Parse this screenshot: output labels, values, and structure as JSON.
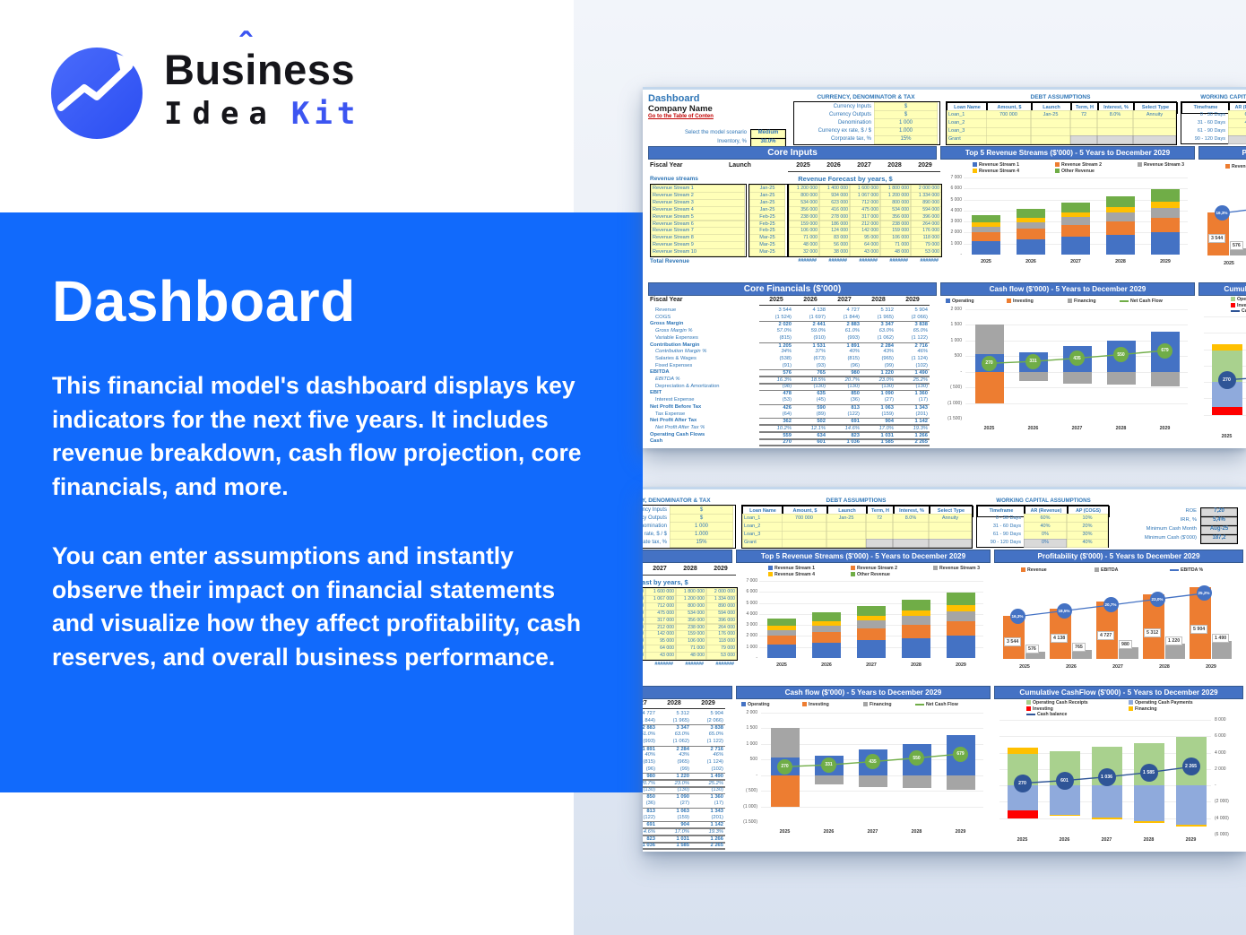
{
  "logo": {
    "word1_a": "Bus",
    "word1_i": "i",
    "word1_hat": "ˆ",
    "word1_b": "ness",
    "word2": "Idea",
    "word3": "Kit"
  },
  "hero": {
    "title": "Dashboard",
    "para1": "This financial model's dashboard displays key indicators for the next five years. It includes revenue breakdown, cash flow projection, core financials, and more.",
    "para2": "You can enter assumptions and instantly observe their impact on financial statements and visualize how they affect profitability, cash reserves, and overall business performance."
  },
  "colors": {
    "brand_blue": "#116afc",
    "excel_banner": "#4472c4",
    "series_blue": "#4472c4",
    "series_orange": "#ed7d31",
    "series_gray": "#a5a5a5",
    "series_yellow": "#ffc000",
    "series_green": "#70ad47",
    "light_green": "#a9d18e",
    "light_blue": "#8faadc",
    "red": "#ff0000",
    "dark_blue": "#2f5597",
    "link_red": "#c00000",
    "cell_yellow": "#ffffb8"
  },
  "sheet": {
    "header": {
      "title": "Dashboard",
      "company": "Company Name",
      "toc": "Go to the Table of Conten"
    },
    "scenario": [
      [
        "Select the model scenario",
        "Medium"
      ],
      [
        "Inventory, %",
        "30.0%"
      ]
    ],
    "currency": {
      "title": "CURRENCY, DENOMINATOR & TAX",
      "rows": [
        [
          "Currency Inputs",
          "$"
        ],
        [
          "Currency Outputs",
          "$"
        ],
        [
          "Denomination",
          "1 000"
        ],
        [
          "Currency ex rate, $ / $",
          "1.000"
        ],
        [
          "Corporate tax, %",
          "15%"
        ]
      ]
    },
    "debt": {
      "title": "DEBT ASSUMPTIONS",
      "headers": [
        "Loan Name",
        "Amount, $",
        "Launch",
        "Term, H",
        "Interest, %",
        "Select Type"
      ],
      "rows": [
        [
          "Loan_1",
          "700 000",
          "Jan-25",
          "72",
          "8.0%",
          "Annuity"
        ],
        [
          "Loan_2",
          "",
          "",
          "",
          "",
          ""
        ],
        [
          "Loan_3",
          "",
          "",
          "",
          "",
          ""
        ],
        [
          "Grant",
          "",
          "",
          "",
          "",
          ""
        ]
      ]
    },
    "working_capital": {
      "title": "WORKING CAPITAL ASSUMPTIONS",
      "headers": [
        "Timeframe",
        "AR (Revenue)",
        "AP (COGS)"
      ],
      "rows": [
        [
          "0 - 30 Days",
          "60%",
          "10%"
        ],
        [
          "31 - 60 Days",
          "40%",
          "20%"
        ],
        [
          "61 - 90 Days",
          "0%",
          "30%"
        ],
        [
          "90 - 120 Days",
          "0%",
          "40%"
        ]
      ]
    },
    "kpis": [
      [
        "ROE",
        "7,20"
      ],
      [
        "IRR, %",
        "5,4%"
      ],
      [
        "Minimum Cash Month",
        "Aug-25"
      ],
      [
        "Minimum Cash ($'000)",
        "187,2"
      ]
    ],
    "banners": {
      "core_inputs": "Core Inputs",
      "core_financials": "Core Financials ($'000)"
    },
    "fiscal": {
      "label": "Fiscal Year",
      "launch": "Launch",
      "years": [
        "2025",
        "2026",
        "2027",
        "2028",
        "2029"
      ]
    },
    "revenue": {
      "label": "Revenue streams",
      "forecast_title": "Revenue Forecast by years, $",
      "names": [
        "Revenue Stream 1",
        "Revenue Stream 2",
        "Revenue Stream 3",
        "Revenue Stream 4",
        "Revenue Stream 5",
        "Revenue Stream 6",
        "Revenue Stream 7",
        "Revenue Stream 8",
        "Revenue Stream 9",
        "Revenue Stream 10"
      ],
      "launch": [
        "Jan-25",
        "Jan-25",
        "Jan-25",
        "Jan-25",
        "Feb-25",
        "Feb-25",
        "Feb-25",
        "Mar-25",
        "Mar-25",
        "Mar-25"
      ],
      "values": [
        [
          "1 200 000",
          "1 400 000",
          "1 600 000",
          "1 800 000",
          "2 000 000"
        ],
        [
          "800 000",
          "934 000",
          "1 067 000",
          "1 200 000",
          "1 334 000"
        ],
        [
          "534 000",
          "623 000",
          "712 000",
          "800 000",
          "890 000"
        ],
        [
          "356 000",
          "416 000",
          "475 000",
          "534 000",
          "594 000"
        ],
        [
          "238 000",
          "278 000",
          "317 000",
          "356 000",
          "396 000"
        ],
        [
          "159 000",
          "186 000",
          "212 000",
          "238 000",
          "264 000"
        ],
        [
          "106 000",
          "124 000",
          "142 000",
          "159 000",
          "176 000"
        ],
        [
          "71 000",
          "83 000",
          "95 000",
          "106 000",
          "118 000"
        ],
        [
          "48 000",
          "56 000",
          "64 000",
          "71 000",
          "79 000"
        ],
        [
          "32 000",
          "38 000",
          "43 000",
          "48 000",
          "53 000"
        ]
      ],
      "total_label": "Total Revenue",
      "total_cells": [
        "#######",
        "#######",
        "#######",
        "#######",
        "#######"
      ]
    },
    "core_financials": {
      "rows": [
        {
          "l": "Revenue",
          "v": [
            "3 544",
            "4 138",
            "4 727",
            "5 312",
            "5 904"
          ],
          "s": "p"
        },
        {
          "l": "COGS",
          "v": [
            "(1 524)",
            "(1 697)",
            "(1 844)",
            "(1 965)",
            "(2 066)"
          ],
          "s": "p"
        },
        {
          "l": "Gross Margin",
          "v": [
            "2 020",
            "2 441",
            "2 883",
            "3 347",
            "3 838"
          ],
          "s": "b",
          "line": "top"
        },
        {
          "l": "Gross Margin %",
          "v": [
            "57.0%",
            "59.0%",
            "61.0%",
            "63.0%",
            "65.0%"
          ],
          "s": "i"
        },
        {
          "l": "Variable Expenses",
          "v": [
            "(815)",
            "(910)",
            "(993)",
            "(1 062)",
            "(1 122)"
          ],
          "s": "p"
        },
        {
          "l": "Contribution Margin",
          "v": [
            "1 205",
            "1 531",
            "1 891",
            "2 284",
            "2 716"
          ],
          "s": "b",
          "line": "top"
        },
        {
          "l": "Contribution Margin %",
          "v": [
            "34%",
            "37%",
            "40%",
            "43%",
            "46%"
          ],
          "s": "i"
        },
        {
          "l": "Salaries & Wages",
          "v": [
            "(538)",
            "(673)",
            "(815)",
            "(965)",
            "(1 124)"
          ],
          "s": "p"
        },
        {
          "l": "Fixed Expenses",
          "v": [
            "(91)",
            "(93)",
            "(96)",
            "(99)",
            "(102)"
          ],
          "s": "p"
        },
        {
          "l": "EBITDA",
          "v": [
            "576",
            "765",
            "980",
            "1 220",
            "1 490"
          ],
          "s": "b",
          "line": "dbl"
        },
        {
          "l": "EBITDA %",
          "v": [
            "16.3%",
            "18.5%",
            "20.7%",
            "23.0%",
            "25.2%"
          ],
          "s": "i",
          "line": "dbl"
        },
        {
          "l": "Depreciation & Amortization",
          "v": [
            "(98)",
            "(130)",
            "(130)",
            "(130)",
            "(130)"
          ],
          "s": "p"
        },
        {
          "l": "EBIT",
          "v": [
            "478",
            "635",
            "850",
            "1 090",
            "1 360"
          ],
          "s": "b",
          "line": "top"
        },
        {
          "l": "Interest Expense",
          "v": [
            "(53)",
            "(45)",
            "(36)",
            "(27)",
            "(17)"
          ],
          "s": "p"
        },
        {
          "l": "Net Profit Before Tax",
          "v": [
            "426",
            "590",
            "813",
            "1 063",
            "1 343"
          ],
          "s": "b",
          "line": "top"
        },
        {
          "l": "Tax Expense",
          "v": [
            "(64)",
            "(89)",
            "(122)",
            "(159)",
            "(201)"
          ],
          "s": "p"
        },
        {
          "l": "Net Profit After Tax",
          "v": [
            "362",
            "502",
            "691",
            "904",
            "1 142"
          ],
          "s": "b",
          "line": "dbl"
        },
        {
          "l": "Net Profit After Tax %",
          "v": [
            "10.2%",
            "12.1%",
            "14.6%",
            "17.0%",
            "19.3%"
          ],
          "s": "i",
          "line": "dbl"
        },
        {
          "l": "Operating Cash Flows",
          "v": [
            "559",
            "634",
            "823",
            "1 031",
            "1 266"
          ],
          "s": "b",
          "line": "dbl"
        },
        {
          "l": "Cash",
          "v": [
            "270",
            "601",
            "1 036",
            "1 585",
            "2 265"
          ],
          "s": "b",
          "line": "dbl"
        }
      ]
    }
  },
  "chart_data": [
    {
      "id": "top5",
      "type": "bar",
      "title": "Top 5 Revenue Streams ($'000) - 5 Years to December 2029",
      "categories": [
        "2025",
        "2026",
        "2027",
        "2028",
        "2029"
      ],
      "series": [
        {
          "name": "Revenue Stream 1",
          "color": "#4472c4",
          "values": [
            1200,
            1400,
            1600,
            1800,
            2000
          ]
        },
        {
          "name": "Revenue Stream 2",
          "color": "#ed7d31",
          "values": [
            800,
            934,
            1067,
            1200,
            1334
          ]
        },
        {
          "name": "Revenue Stream 3",
          "color": "#a5a5a5",
          "values": [
            534,
            623,
            712,
            800,
            890
          ]
        },
        {
          "name": "Revenue Stream 4",
          "color": "#ffc000",
          "values": [
            356,
            416,
            475,
            534,
            594
          ]
        },
        {
          "name": "Other Revenue",
          "color": "#70ad47",
          "values": [
            654,
            765,
            873,
            978,
            1086
          ]
        }
      ],
      "ylim": [
        0,
        7000
      ],
      "yticks": [
        "7 000",
        "6 000",
        "5 000",
        "4 000",
        "3 000",
        "2 000",
        "1 000",
        "-"
      ],
      "legend_position": "top",
      "grid": true
    },
    {
      "id": "profitability",
      "type": "bar",
      "title": "Profitability ($'000) - 5 Years to December 2029",
      "categories": [
        "2025",
        "2026",
        "2027",
        "2028",
        "2029"
      ],
      "series": [
        {
          "name": "Revenue",
          "color": "#ed7d31",
          "values": [
            3544,
            4138,
            4727,
            5312,
            5904
          ],
          "labels": [
            "3 544",
            "4 138",
            "4 727",
            "5 312",
            "5 904"
          ]
        },
        {
          "name": "EBITDA",
          "color": "#a5a5a5",
          "values": [
            576,
            765,
            980,
            1220,
            1490
          ],
          "labels": [
            "576",
            "765",
            "980",
            "1 220",
            "1 490"
          ]
        }
      ],
      "line": {
        "name": "EBITDA %",
        "color": "#4472c4",
        "values": [
          16.3,
          18.5,
          20.7,
          23.0,
          25.2
        ],
        "labels": [
          "16,3%",
          "18,5%",
          "20,7%",
          "23,0%",
          "25,2%"
        ]
      },
      "ylim": [
        0,
        6500
      ],
      "legend_position": "top",
      "grid": false
    },
    {
      "id": "cashflow",
      "type": "bar",
      "title": "Cash flow ($'000) - 5 Years to December 2029",
      "categories": [
        "2025",
        "2026",
        "2027",
        "2028",
        "2029"
      ],
      "series": [
        {
          "name": "Operating",
          "color": "#4472c4",
          "values": [
            560,
            630,
            810,
            1010,
            1270
          ]
        },
        {
          "name": "Financing",
          "color": "#a5a5a5",
          "values": [
            940,
            -300,
            -380,
            -420,
            -480
          ]
        },
        {
          "name": "Investing",
          "color": "#ed7d31",
          "values": [
            -1000,
            0,
            0,
            0,
            0
          ]
        }
      ],
      "line": {
        "name": "Net Cash Flow",
        "color": "#70ad47",
        "values": [
          270,
          331,
          435,
          550,
          679
        ],
        "labels": [
          "270",
          "331",
          "435",
          "550",
          "679"
        ]
      },
      "legend_order": [
        "Operating",
        "Investing",
        "Financing",
        "Net Cash Flow"
      ],
      "ylim": [
        -1500,
        2000
      ],
      "yticks": [
        "2 000",
        "1 500",
        "1 000",
        "500",
        "-",
        "( 500)",
        "(1 000)",
        "(1 500)"
      ],
      "legend_position": "top",
      "grid": true
    },
    {
      "id": "cumulative",
      "type": "bar",
      "title": "Cumulative CashFlow ($'000) - 5 Years to December 2029",
      "categories": [
        "2025",
        "2026",
        "2027",
        "2028",
        "2029"
      ],
      "series": [
        {
          "name": "Operating Cash Receipts",
          "color": "#a9d18e",
          "values": [
            3800,
            4200,
            4700,
            5200,
            5900
          ]
        },
        {
          "name": "Operating Cash Payments",
          "color": "#8faadc",
          "values": [
            -3000,
            -3550,
            -3950,
            -4350,
            -4750
          ]
        },
        {
          "name": "Financing",
          "color": "#ffc000",
          "values": [
            800,
            -150,
            -150,
            -200,
            -250
          ]
        },
        {
          "name": "Investing",
          "color": "#ff0000",
          "values": [
            -1050,
            0,
            0,
            0,
            0
          ]
        }
      ],
      "line": {
        "name": "Cash balance",
        "color": "#2f5597",
        "values": [
          270,
          601,
          1036,
          1585,
          2265
        ],
        "labels": [
          "270",
          "601",
          "1 036",
          "1 585",
          "2 265"
        ]
      },
      "ylim": [
        -6000,
        8000
      ],
      "yticks": [
        "8 000",
        "6 000",
        "4 000",
        "2 000",
        "-",
        "(2 000)",
        "(4 000)",
        "(6 000)"
      ],
      "legend_position": "top",
      "grid": true,
      "yaxis": "right"
    }
  ]
}
